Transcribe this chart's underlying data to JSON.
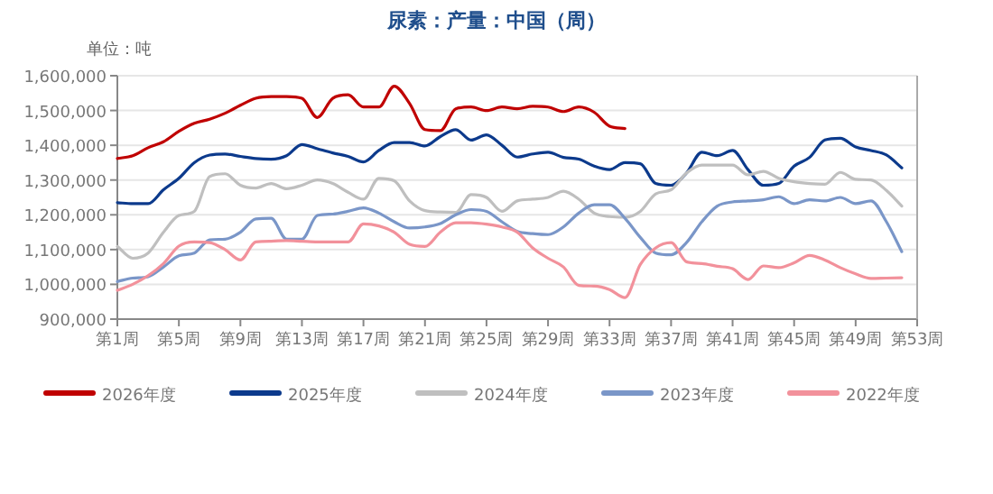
{
  "chart_data": {
    "type": "line",
    "title": "尿素：产量：中国（周）",
    "ylabel": "单位：吨",
    "categories": [
      "第1周",
      null,
      null,
      null,
      "第5周",
      null,
      null,
      null,
      "第9周",
      null,
      null,
      null,
      "第13周",
      null,
      null,
      null,
      "第17周",
      null,
      null,
      null,
      "第21周",
      null,
      null,
      null,
      "第25周",
      null,
      null,
      null,
      "第29周",
      null,
      null,
      null,
      "第33周",
      null,
      null,
      null,
      "第37周",
      null,
      null,
      null,
      "第41周",
      null,
      null,
      null,
      "第45周",
      null,
      null,
      null,
      "第49周",
      null,
      null,
      null,
      "第53周"
    ],
    "ylim": [
      900000,
      1600000
    ],
    "yticks": [
      {
        "value": 900000,
        "label": "900,000"
      },
      {
        "value": 1000000,
        "label": "1,000,000"
      },
      {
        "value": 1100000,
        "label": "1,100,000"
      },
      {
        "value": 1200000,
        "label": "1,200,000"
      },
      {
        "value": 1300000,
        "label": "1,300,000"
      },
      {
        "value": 1400000,
        "label": "1,400,000"
      },
      {
        "value": 1500000,
        "label": "1,500,000"
      },
      {
        "value": 1600000,
        "label": "1,600,000"
      }
    ],
    "grid": "y",
    "legend": "bottom",
    "line_style": "solid",
    "series": [
      {
        "name": "2026年度",
        "color": "#c00000",
        "values": [
          1362000,
          1370000,
          1393000,
          1410000,
          1440000,
          1463000,
          1475000,
          1492000,
          1515000,
          1535000,
          1540000,
          1540000,
          1535000,
          1480000,
          1535000,
          1545000,
          1510000,
          1510000,
          1570000,
          1520000,
          1445000,
          1442000,
          1505000,
          1510000,
          1500000,
          1510000,
          1505000,
          1512000,
          1510000,
          1497000,
          1510000,
          1495000,
          1455000,
          1448000,
          null,
          null,
          null,
          null,
          null,
          null,
          null,
          null,
          null,
          null,
          null,
          null,
          null,
          null,
          null,
          null,
          null,
          null,
          null
        ]
      },
      {
        "name": "2025年度",
        "color": "#0c3a8c",
        "values": [
          1235000,
          1232000,
          1232000,
          1272000,
          1305000,
          1350000,
          1372000,
          1375000,
          1368000,
          1362000,
          1360000,
          1370000,
          1402000,
          1390000,
          1378000,
          1368000,
          1352000,
          1385000,
          1408000,
          1408000,
          1398000,
          1425000,
          1445000,
          1415000,
          1430000,
          1400000,
          1366000,
          1375000,
          1380000,
          1365000,
          1360000,
          1340000,
          1330000,
          1350000,
          1347000,
          1290000,
          1285000,
          1320000,
          1380000,
          1370000,
          1385000,
          1330000,
          1285000,
          1290000,
          1340000,
          1365000,
          1415000,
          1420000,
          1395000,
          1385000,
          1372000,
          1335000,
          null
        ]
      },
      {
        "name": "2024年度",
        "color": "#bfbfbf",
        "values": [
          1109000,
          1075000,
          1090000,
          1150000,
          1198000,
          1210000,
          1310000,
          1318000,
          1285000,
          1277000,
          1290000,
          1275000,
          1285000,
          1300000,
          1290000,
          1265000,
          1245000,
          1305000,
          1298000,
          1240000,
          1212000,
          1208000,
          1207000,
          1258000,
          1250000,
          1210000,
          1240000,
          1245000,
          1250000,
          1268000,
          1245000,
          1205000,
          1195000,
          1193000,
          1210000,
          1260000,
          1272000,
          1320000,
          1343000,
          1343000,
          1343000,
          1315000,
          1325000,
          1305000,
          1295000,
          1290000,
          1288000,
          1322000,
          1302000,
          1300000,
          1270000,
          1225000,
          null
        ]
      },
      {
        "name": "2023年度",
        "color": "#7a96c8",
        "values": [
          1008000,
          1018000,
          1022000,
          1050000,
          1082000,
          1090000,
          1128000,
          1130000,
          1150000,
          1188000,
          1190000,
          1130000,
          1130000,
          1198000,
          1202000,
          1210000,
          1220000,
          1205000,
          1180000,
          1162000,
          1165000,
          1175000,
          1200000,
          1215000,
          1210000,
          1180000,
          1152000,
          1146000,
          1143000,
          1165000,
          1205000,
          1229000,
          1229000,
          1190000,
          1135000,
          1090000,
          1085000,
          1120000,
          1180000,
          1225000,
          1237000,
          1240000,
          1243000,
          1252000,
          1232000,
          1243000,
          1240000,
          1250000,
          1232000,
          1240000,
          1180000,
          1094000,
          null
        ]
      },
      {
        "name": "2022年度",
        "color": "#f2919b",
        "values": [
          983000,
          1000000,
          1025000,
          1060000,
          1110000,
          1122000,
          1120000,
          1100000,
          1070000,
          1122000,
          1124000,
          1126000,
          1124000,
          1122000,
          1122000,
          1122000,
          1174000,
          1168000,
          1150000,
          1115000,
          1109000,
          1150000,
          1177000,
          1177000,
          1173000,
          1165000,
          1150000,
          1105000,
          1075000,
          1050000,
          997000,
          995000,
          985000,
          962000,
          1057000,
          1105000,
          1120000,
          1065000,
          1060000,
          1052000,
          1045000,
          1014000,
          1053000,
          1048000,
          1062000,
          1083000,
          1070000,
          1048000,
          1030000,
          1017000,
          1018000,
          1019000,
          null
        ]
      }
    ]
  }
}
